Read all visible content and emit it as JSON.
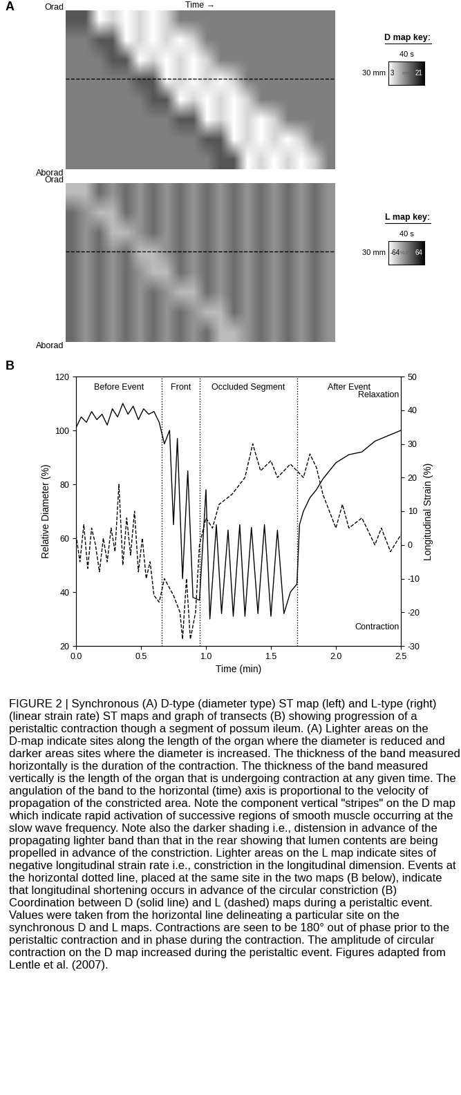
{
  "chart_data": [
    {
      "type": "heatmap",
      "panel_label": "A",
      "time_label": "Time →",
      "top_label": "Orad",
      "bottom_label": "Aborad",
      "cells": [
        [
          15,
          15,
          3,
          6,
          3,
          6,
          3,
          6,
          12,
          12,
          12,
          12,
          12,
          12,
          12,
          12,
          12,
          12,
          12,
          12
        ],
        [
          12,
          12,
          15,
          15,
          3,
          6,
          3,
          6,
          3,
          6,
          12,
          12,
          12,
          12,
          12,
          12,
          12,
          12,
          12,
          12
        ],
        [
          12,
          12,
          12,
          15,
          15,
          3,
          6,
          3,
          6,
          3,
          6,
          12,
          12,
          12,
          12,
          12,
          12,
          12,
          12,
          12
        ],
        [
          12,
          12,
          12,
          12,
          12,
          15,
          15,
          3,
          6,
          3,
          6,
          3,
          6,
          12,
          12,
          12,
          12,
          12,
          12,
          12
        ],
        [
          12,
          12,
          12,
          12,
          12,
          12,
          15,
          15,
          3,
          6,
          3,
          6,
          3,
          6,
          12,
          12,
          12,
          12,
          12,
          12
        ],
        [
          12,
          12,
          12,
          12,
          12,
          12,
          12,
          12,
          15,
          15,
          3,
          6,
          3,
          6,
          3,
          6,
          12,
          12,
          12,
          12
        ],
        [
          12,
          12,
          12,
          12,
          12,
          12,
          12,
          12,
          12,
          12,
          15,
          15,
          3,
          6,
          3,
          6,
          3,
          6,
          12,
          12
        ],
        [
          12,
          12,
          12,
          12,
          12,
          12,
          12,
          12,
          12,
          12,
          12,
          15,
          15,
          3,
          6,
          3,
          6,
          3,
          6,
          12
        ]
      ],
      "colorbar": {
        "title": "D map key:",
        "time_scale": "40 s",
        "length_scale": "30 mm",
        "range": [
          3,
          21
        ],
        "unit": "mm"
      }
    },
    {
      "type": "heatmap",
      "top_label": "Orad",
      "bottom_label": "Aborad",
      "cells": [
        [
          -30,
          -30,
          10,
          -10,
          10,
          -10,
          10,
          -10,
          10,
          -10,
          10,
          -10,
          10,
          -10,
          10,
          -10,
          10,
          -10,
          10,
          -10
        ],
        [
          10,
          -10,
          -30,
          -30,
          10,
          -10,
          10,
          -10,
          10,
          -10,
          10,
          -10,
          10,
          -10,
          10,
          -10,
          10,
          -10,
          10,
          -10
        ],
        [
          10,
          -10,
          10,
          -30,
          -30,
          -10,
          10,
          -10,
          10,
          -10,
          10,
          -10,
          10,
          -10,
          10,
          -10,
          10,
          -10,
          10,
          -10
        ],
        [
          10,
          -10,
          10,
          -10,
          10,
          -30,
          -30,
          -10,
          10,
          -10,
          10,
          -10,
          10,
          -10,
          10,
          -10,
          10,
          -10,
          10,
          -10
        ],
        [
          10,
          -10,
          10,
          -10,
          10,
          -10,
          -30,
          -30,
          10,
          -10,
          10,
          -10,
          10,
          -10,
          10,
          -10,
          10,
          -10,
          10,
          -10
        ],
        [
          10,
          -10,
          10,
          -10,
          10,
          -10,
          10,
          -10,
          -30,
          -30,
          10,
          -10,
          10,
          -10,
          10,
          -10,
          10,
          -10,
          10,
          -10
        ],
        [
          10,
          -10,
          10,
          -10,
          10,
          -10,
          10,
          -10,
          10,
          -10,
          -30,
          -30,
          10,
          -10,
          10,
          -10,
          10,
          -10,
          10,
          -10
        ],
        [
          10,
          -10,
          10,
          -10,
          10,
          -10,
          10,
          -10,
          10,
          -10,
          10,
          -30,
          -30,
          -10,
          10,
          -10,
          10,
          -10,
          10,
          -10
        ]
      ],
      "colorbar": {
        "title": "L map key:",
        "time_scale": "40 s",
        "length_scale": "30 mm",
        "range": [
          -64,
          64
        ],
        "unit": "%.s⁻¹"
      }
    },
    {
      "type": "line",
      "panel_label": "B",
      "xlabel": "Time (min)",
      "ylabel": "Relative Diameter (%)",
      "y2label": "Longitudinal Strain (%)",
      "xlim": [
        0.0,
        2.5
      ],
      "xticks": [
        0.0,
        0.5,
        1.0,
        1.5,
        2.0,
        2.5
      ],
      "ylim": [
        20,
        120
      ],
      "yticks": [
        20,
        40,
        60,
        80,
        100,
        120
      ],
      "y2lim": [
        -30,
        50
      ],
      "y2ticks": [
        -30,
        -20,
        -10,
        0,
        10,
        20,
        30,
        40,
        50
      ],
      "sections": [
        "Before Event",
        "Front",
        "Occluded Segment",
        "After Event"
      ],
      "section_boundaries": [
        0.66,
        0.95,
        1.7
      ],
      "annotations": [
        "Relaxation",
        "Contraction"
      ],
      "series": [
        {
          "color": "#000000",
          "line_style": "solid",
          "x": [
            0.0,
            0.04,
            0.08,
            0.12,
            0.16,
            0.2,
            0.24,
            0.28,
            0.32,
            0.36,
            0.4,
            0.44,
            0.48,
            0.52,
            0.56,
            0.6,
            0.64,
            0.68,
            0.72,
            0.75,
            0.78,
            0.82,
            0.86,
            0.9,
            0.95,
            1.0,
            1.03,
            1.08,
            1.12,
            1.17,
            1.21,
            1.26,
            1.3,
            1.35,
            1.4,
            1.45,
            1.5,
            1.55,
            1.6,
            1.65,
            1.7,
            1.72,
            1.75,
            1.8,
            1.85,
            1.9,
            2.0,
            2.1,
            2.2,
            2.3,
            2.4,
            2.5
          ],
          "values": [
            101,
            105,
            103,
            107,
            104,
            106,
            102,
            108,
            105,
            110,
            106,
            109,
            104,
            108,
            106,
            107,
            103,
            95,
            100,
            65,
            97,
            45,
            85,
            38,
            37,
            78,
            30,
            65,
            32,
            63,
            31,
            65,
            31,
            64,
            32,
            65,
            31,
            63,
            32,
            40,
            43,
            65,
            70,
            75,
            78,
            82,
            88,
            91,
            92,
            96,
            98,
            100
          ]
        },
        {
          "color": "#000000",
          "line_style": "dashed",
          "axis": "y2",
          "x": [
            0.0,
            0.03,
            0.06,
            0.09,
            0.12,
            0.15,
            0.18,
            0.21,
            0.24,
            0.27,
            0.3,
            0.33,
            0.36,
            0.39,
            0.42,
            0.45,
            0.48,
            0.51,
            0.54,
            0.57,
            0.6,
            0.64,
            0.68,
            0.75,
            0.8,
            0.82,
            0.85,
            0.88,
            0.92,
            0.95,
            1.0,
            1.05,
            1.1,
            1.2,
            1.3,
            1.36,
            1.42,
            1.5,
            1.55,
            1.65,
            1.7,
            1.75,
            1.8,
            1.85,
            1.9,
            1.95,
            2.0,
            2.05,
            2.1,
            2.2,
            2.3,
            2.35,
            2.42,
            2.5
          ],
          "values": [
            3,
            -5,
            6,
            -7,
            5,
            0,
            -8,
            2,
            -5,
            5,
            -2,
            18,
            -6,
            8,
            -3,
            10,
            -8,
            2,
            -10,
            -5,
            -15,
            -17,
            -10,
            -15,
            -20,
            -28,
            -10,
            -28,
            -20,
            0,
            8,
            5,
            12,
            15,
            20,
            30,
            22,
            25,
            20,
            24,
            22,
            20,
            27,
            23,
            15,
            10,
            5,
            12,
            5,
            8,
            0,
            5,
            -2,
            3
          ]
        }
      ]
    }
  ],
  "caption": "FIGURE 2 | Synchronous (A) D-type (diameter type) ST map (left) and L-type (right) (linear strain rate) ST maps and graph of transects (B) showing progression of a peristaltic contraction though a segment of possum ileum. (A) Lighter areas on the D-map indicate sites along the length of the organ where the diameter is reduced and darker areas sites where the diameter is increased. The thickness of the band measured horizontally is the duration of the contraction. The thickness of the band measured vertically is the length of the organ that is undergoing contraction at any given time. The angulation of the band to the horizontal (time) axis is proportional to the velocity of propagation of the constricted area. Note the component vertical \"stripes\" on the D map which indicate rapid activation of successive regions of smooth muscle occurring at the slow wave frequency. Note also the darker shading i.e., distension in advance of the propagating lighter band than that in the rear showing that lumen contents are being propelled in advance of the constriction. Lighter areas on the L map indicate sites of negative longitudinal strain rate i.e., constriction in the longitudinal dimension. Events at the horizontal dotted line, placed at the same site in the two maps (B below), indicate that longitudinal shortening occurs in advance of the circular constriction (B) Coordination between D (solid line) and L (dashed) maps during a peristaltic event. Values were taken from the horizontal line delineating a particular site on the synchronous D and L maps. Contractions are seen to be 180° out of phase prior to the peristaltic contraction and in phase during the contraction. The amplitude of circular contraction on the D map increased during the peristaltic event. Figures adapted from Lentle et al. (2007)."
}
